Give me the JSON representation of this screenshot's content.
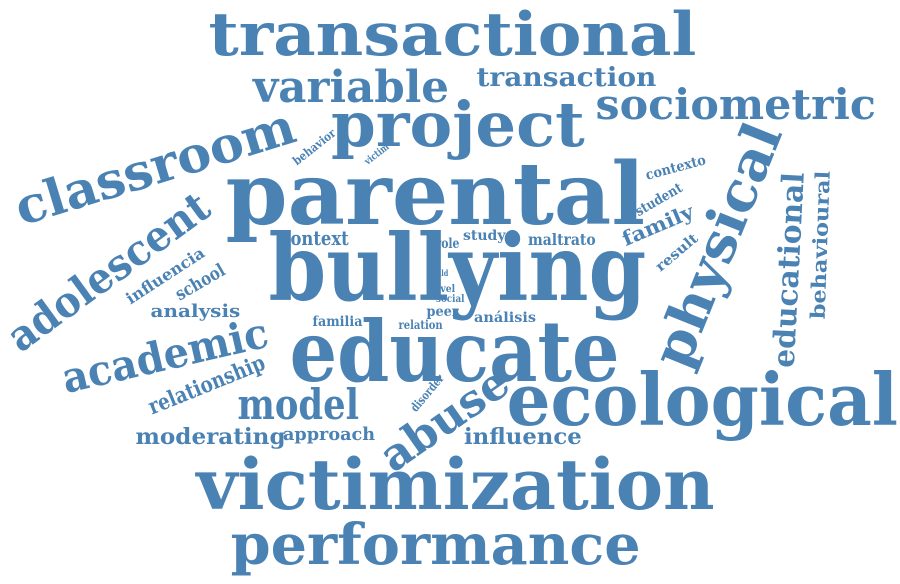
{
  "cloud": {
    "color": "#4a82b4",
    "words": [
      {
        "text": "transactional"
      },
      {
        "text": "variable"
      },
      {
        "text": "transaction"
      },
      {
        "text": "project"
      },
      {
        "text": "sociometric"
      },
      {
        "text": "classroom"
      },
      {
        "text": "parental"
      },
      {
        "text": "physical"
      },
      {
        "text": "educational"
      },
      {
        "text": "behavioural"
      },
      {
        "text": "adolescent"
      },
      {
        "text": "bullying"
      },
      {
        "text": "educate"
      },
      {
        "text": "ecological"
      },
      {
        "text": "academic"
      },
      {
        "text": "model"
      },
      {
        "text": "abuse"
      },
      {
        "text": "victimization"
      },
      {
        "text": "performance"
      },
      {
        "text": "relationship"
      },
      {
        "text": "moderating"
      },
      {
        "text": "approach"
      },
      {
        "text": "influence"
      },
      {
        "text": "context"
      },
      {
        "text": "family"
      },
      {
        "text": "school"
      },
      {
        "text": "analysis"
      },
      {
        "text": "influencia"
      },
      {
        "text": "maltrato"
      },
      {
        "text": "result"
      },
      {
        "text": "student"
      },
      {
        "text": "contexto"
      },
      {
        "text": "behavior"
      },
      {
        "text": "victim"
      },
      {
        "text": "study"
      },
      {
        "text": "role"
      },
      {
        "text": "child"
      },
      {
        "text": "level"
      },
      {
        "text": "social"
      },
      {
        "text": "peer"
      },
      {
        "text": "relation"
      },
      {
        "text": "análisis"
      },
      {
        "text": "familia"
      },
      {
        "text": "disorder"
      }
    ]
  }
}
